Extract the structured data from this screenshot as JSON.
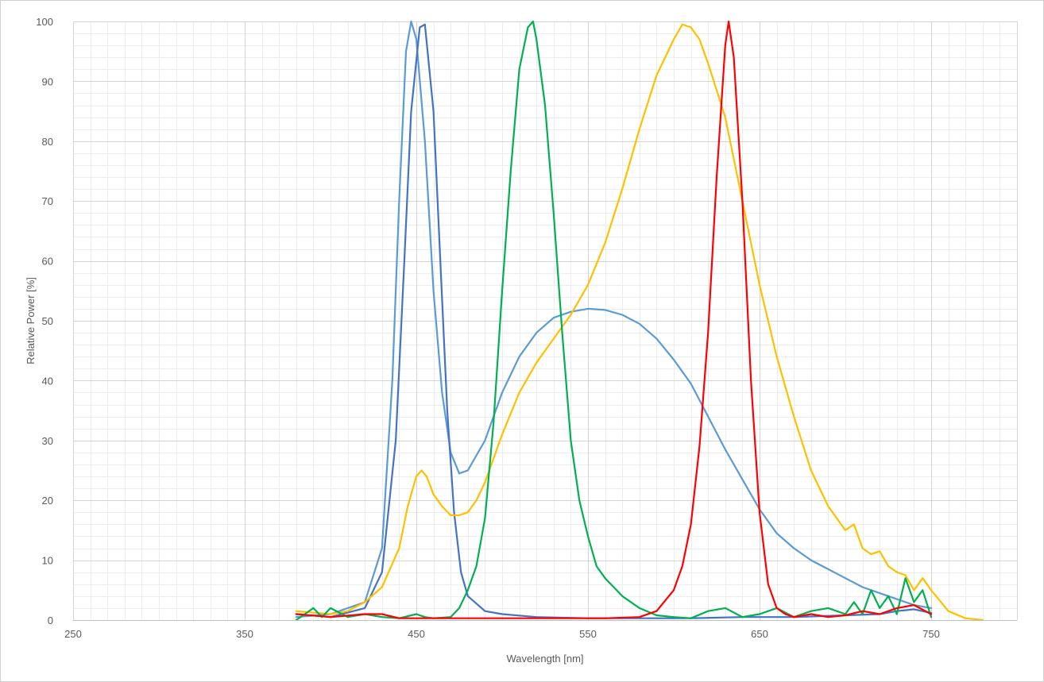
{
  "chart_data": {
    "type": "line",
    "title": "",
    "xlabel": "Wavelength [nm]",
    "ylabel": "Relative Power [%]",
    "xlim": [
      250,
      800
    ],
    "ylim": [
      0,
      100
    ],
    "x_ticks": [
      250,
      350,
      450,
      550,
      650,
      750
    ],
    "y_ticks": [
      0,
      10,
      20,
      30,
      40,
      50,
      60,
      70,
      80,
      90,
      100
    ],
    "x_minor_step": 10,
    "y_minor_step": 2,
    "grid": true,
    "legend": "none",
    "series": [
      {
        "color": "#5b9bd5",
        "x": [
          380,
          400,
          420,
          430,
          436,
          440,
          444,
          447,
          450,
          455,
          460,
          465,
          470,
          475,
          480,
          490,
          500,
          510,
          520,
          530,
          540,
          550,
          560,
          570,
          580,
          590,
          600,
          610,
          620,
          630,
          640,
          650,
          660,
          670,
          680,
          690,
          700,
          710,
          720,
          730,
          740,
          750
        ],
        "y": [
          0.5,
          1,
          3,
          12,
          40,
          70,
          95,
          100,
          97,
          80,
          55,
          38,
          28,
          24.5,
          25,
          30,
          38,
          44,
          48,
          50.5,
          51.5,
          52,
          51.8,
          51,
          49.5,
          47,
          43.5,
          39.5,
          34,
          28.5,
          23.5,
          18.5,
          14.5,
          12,
          10,
          8.5,
          7,
          5.5,
          4.5,
          3.5,
          2.5,
          2
        ]
      },
      {
        "color": "#4472c4",
        "x": [
          380,
          400,
          420,
          430,
          438,
          443,
          447,
          452,
          455,
          460,
          464,
          468,
          472,
          476,
          480,
          490,
          500,
          520,
          550,
          580,
          610,
          640,
          670,
          700,
          720,
          730,
          740,
          750
        ],
        "y": [
          1,
          0.5,
          2,
          8,
          30,
          60,
          85,
          99,
          99.5,
          85,
          60,
          35,
          18,
          8,
          4,
          1.5,
          1,
          0.5,
          0.3,
          0.3,
          0.3,
          0.5,
          0.5,
          0.8,
          1,
          1.5,
          1.8,
          1.2
        ]
      },
      {
        "color": "#ffc000",
        "x": [
          380,
          400,
          410,
          420,
          430,
          440,
          445,
          450,
          453,
          456,
          460,
          465,
          470,
          475,
          480,
          485,
          490,
          500,
          510,
          520,
          530,
          540,
          550,
          560,
          570,
          580,
          590,
          600,
          605,
          610,
          615,
          620,
          630,
          640,
          650,
          660,
          670,
          680,
          690,
          700,
          705,
          710,
          715,
          720,
          725,
          730,
          735,
          740,
          745,
          750,
          760,
          770,
          780
        ],
        "y": [
          1.5,
          1,
          1.5,
          3,
          5.5,
          12,
          19,
          24,
          25,
          24,
          21,
          19,
          17.5,
          17.5,
          18,
          20,
          23,
          31,
          38,
          43,
          47,
          51,
          56,
          63,
          72,
          82,
          91,
          97,
          99.5,
          99,
          97,
          93,
          84,
          70,
          56,
          44,
          34,
          25,
          19,
          15,
          16,
          12,
          11,
          11.5,
          9,
          8,
          7.5,
          5,
          7,
          5,
          1.5,
          0.3,
          0
        ]
      },
      {
        "color": "#00b050",
        "x": [
          380,
          385,
          390,
          395,
          400,
          410,
          420,
          430,
          440,
          450,
          455,
          460,
          470,
          475,
          480,
          485,
          490,
          495,
          500,
          505,
          510,
          515,
          518,
          520,
          525,
          530,
          535,
          540,
          545,
          550,
          555,
          560,
          570,
          580,
          590,
          600,
          610,
          620,
          630,
          640,
          650,
          660,
          670,
          680,
          690,
          700,
          705,
          710,
          715,
          720,
          725,
          730,
          735,
          740,
          745,
          750
        ],
        "y": [
          0,
          1,
          2,
          0.5,
          2,
          0.5,
          1,
          0.5,
          0.3,
          1,
          0.5,
          0.3,
          0.5,
          2,
          5,
          9,
          17,
          33,
          55,
          75,
          92,
          99,
          100,
          97,
          86,
          68,
          48,
          30,
          20,
          14,
          9,
          7,
          4,
          2,
          0.8,
          0.5,
          0.3,
          1.5,
          2,
          0.5,
          1,
          2,
          0.5,
          1.5,
          2,
          1,
          3,
          1,
          5,
          2,
          4,
          1,
          7,
          3,
          5,
          0.5
        ]
      },
      {
        "color": "#ff0000",
        "x": [
          380,
          400,
          420,
          430,
          440,
          460,
          480,
          500,
          520,
          540,
          560,
          580,
          590,
          600,
          605,
          610,
          615,
          620,
          625,
          630,
          632,
          635,
          640,
          645,
          650,
          655,
          660,
          665,
          670,
          680,
          690,
          700,
          710,
          720,
          730,
          740,
          750
        ],
        "y": [
          1,
          0.5,
          1,
          1,
          0.3,
          0.3,
          0.3,
          0.3,
          0.3,
          0.3,
          0.3,
          0.5,
          1.5,
          5,
          9,
          16,
          29,
          48,
          74,
          96,
          100,
          94,
          70,
          40,
          18,
          6,
          2,
          1,
          0.5,
          1,
          0.5,
          0.8,
          1.5,
          1,
          2,
          2.5,
          1
        ]
      }
    ]
  }
}
